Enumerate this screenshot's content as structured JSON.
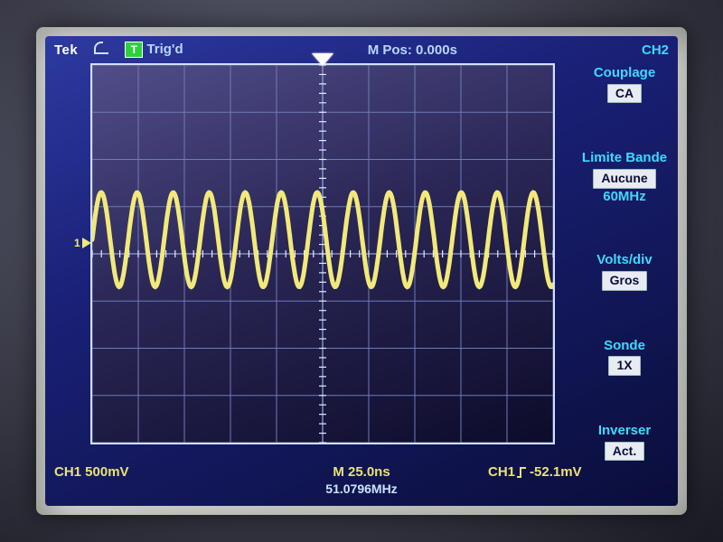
{
  "topbar": {
    "brand": "Tek",
    "trig_letter": "T",
    "trig_label": "Trig'd",
    "mpos": "M Pos: 0.000s",
    "right_ch": "CH2"
  },
  "channel_marker": {
    "label": "1",
    "color": "#f2e97a"
  },
  "menu": {
    "coupling": {
      "title": "Couplage",
      "value": "CA"
    },
    "bwlimit": {
      "title": "Limite Bande",
      "value": "Aucune",
      "unit": "60MHz"
    },
    "voltsdiv": {
      "title": "Volts/div",
      "value": "Gros"
    },
    "probe": {
      "title": "Sonde",
      "value": "1X"
    },
    "invert": {
      "title": "Inverser",
      "value": "Act."
    }
  },
  "bottom": {
    "left": "CH1 500mV",
    "mid": "M 25.0ns",
    "right_label": "CH1",
    "right_val": "-52.1mV",
    "freq": "51.0796MHz"
  },
  "waveform": {
    "type": "sine",
    "cycles": 12.8,
    "amplitude_div": 1.0,
    "offset_div": 0.3,
    "stroke": "#f2e97a",
    "stroke_width": 5,
    "grid": {
      "h_div": 10,
      "v_div": 8,
      "minor_per_div": 5
    },
    "colors": {
      "grid_minor": "#6f7bb6",
      "grid_major": "#8fa0d8",
      "ticks": "#e4ebff",
      "border": "#cfe0ff",
      "bg_top": "#514d8a",
      "bg_bot": "#0d0b2a"
    }
  }
}
